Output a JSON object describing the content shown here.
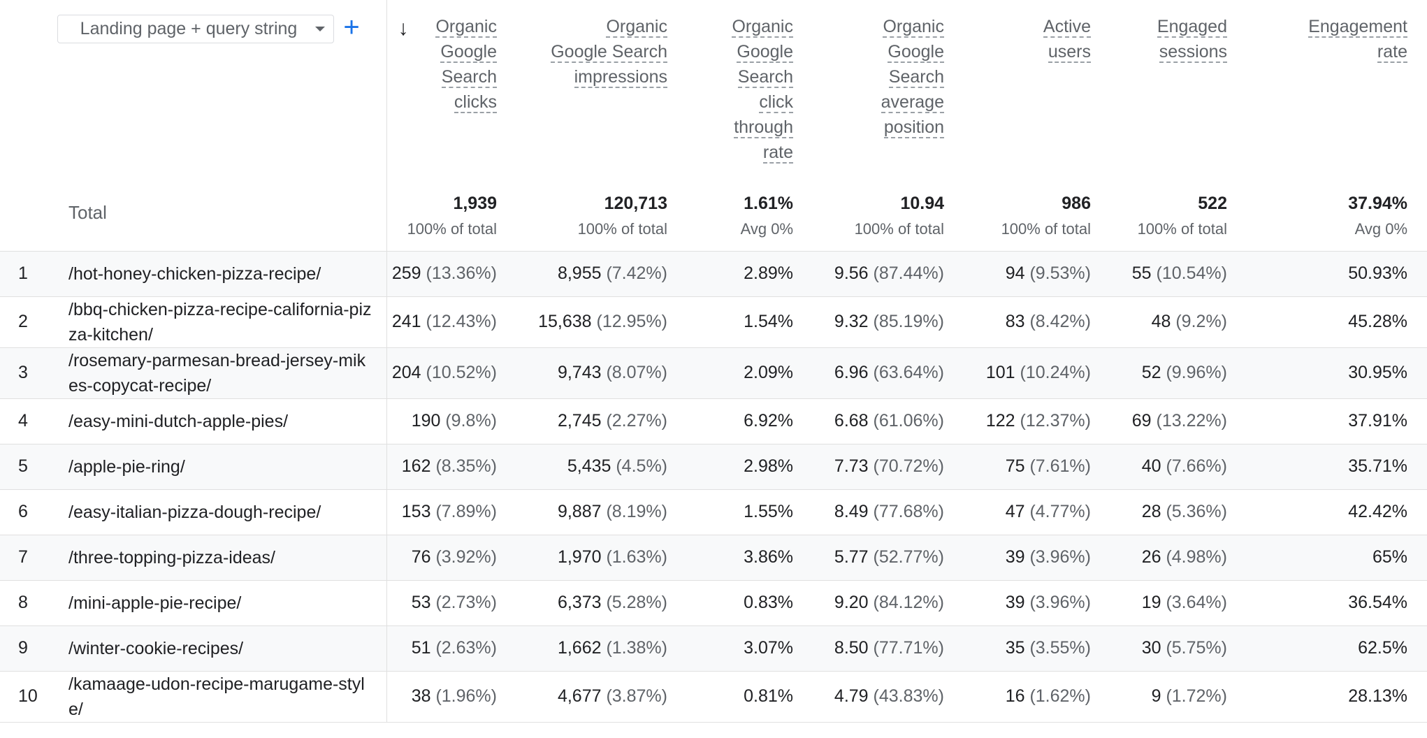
{
  "dimension": {
    "selector_label": "Landing page + query string",
    "add_button": "+"
  },
  "sort_icon": "arrow-down-icon",
  "columns": [
    {
      "lines": [
        "Organic",
        "Google",
        "Search",
        "clicks"
      ]
    },
    {
      "lines": [
        "Organic",
        "Google Search",
        "impressions"
      ]
    },
    {
      "lines": [
        "Organic",
        "Google",
        "Search",
        "click",
        "through",
        "rate"
      ]
    },
    {
      "lines": [
        "Organic",
        "Google",
        "Search",
        "average",
        "position"
      ]
    },
    {
      "lines": [
        "Active",
        "users"
      ]
    },
    {
      "lines": [
        "Engaged",
        "sessions"
      ]
    },
    {
      "lines": [
        "Engagement",
        "rate"
      ]
    }
  ],
  "totals": {
    "label": "Total",
    "values": [
      {
        "value": "1,939",
        "sub": "100% of total"
      },
      {
        "value": "120,713",
        "sub": "100% of total"
      },
      {
        "value": "1.61%",
        "sub": "Avg 0%"
      },
      {
        "value": "10.94",
        "sub": "100% of total"
      },
      {
        "value": "986",
        "sub": "100% of total"
      },
      {
        "value": "522",
        "sub": "100% of total"
      },
      {
        "value": "37.94%",
        "sub": "Avg 0%"
      }
    ]
  },
  "rows": [
    {
      "index": "1",
      "page": "/hot-honey-chicken-pizza-recipe/",
      "cells": [
        {
          "v": "259",
          "p": "(13.36%)"
        },
        {
          "v": "8,955",
          "p": "(7.42%)"
        },
        {
          "v": "2.89%",
          "p": ""
        },
        {
          "v": "9.56",
          "p": "(87.44%)"
        },
        {
          "v": "94",
          "p": "(9.53%)"
        },
        {
          "v": "55",
          "p": "(10.54%)"
        },
        {
          "v": "50.93%",
          "p": ""
        }
      ]
    },
    {
      "index": "2",
      "page": "/bbq-chicken-pizza-recipe-california-pizza-kitchen/",
      "cells": [
        {
          "v": "241",
          "p": "(12.43%)"
        },
        {
          "v": "15,638",
          "p": "(12.95%)"
        },
        {
          "v": "1.54%",
          "p": ""
        },
        {
          "v": "9.32",
          "p": "(85.19%)"
        },
        {
          "v": "83",
          "p": "(8.42%)"
        },
        {
          "v": "48",
          "p": "(9.2%)"
        },
        {
          "v": "45.28%",
          "p": ""
        }
      ]
    },
    {
      "index": "3",
      "page": "/rosemary-parmesan-bread-jersey-mikes-copycat-recipe/",
      "cells": [
        {
          "v": "204",
          "p": "(10.52%)"
        },
        {
          "v": "9,743",
          "p": "(8.07%)"
        },
        {
          "v": "2.09%",
          "p": ""
        },
        {
          "v": "6.96",
          "p": "(63.64%)"
        },
        {
          "v": "101",
          "p": "(10.24%)"
        },
        {
          "v": "52",
          "p": "(9.96%)"
        },
        {
          "v": "30.95%",
          "p": ""
        }
      ]
    },
    {
      "index": "4",
      "page": "/easy-mini-dutch-apple-pies/",
      "cells": [
        {
          "v": "190",
          "p": "(9.8%)"
        },
        {
          "v": "2,745",
          "p": "(2.27%)"
        },
        {
          "v": "6.92%",
          "p": ""
        },
        {
          "v": "6.68",
          "p": "(61.06%)"
        },
        {
          "v": "122",
          "p": "(12.37%)"
        },
        {
          "v": "69",
          "p": "(13.22%)"
        },
        {
          "v": "37.91%",
          "p": ""
        }
      ]
    },
    {
      "index": "5",
      "page": "/apple-pie-ring/",
      "cells": [
        {
          "v": "162",
          "p": "(8.35%)"
        },
        {
          "v": "5,435",
          "p": "(4.5%)"
        },
        {
          "v": "2.98%",
          "p": ""
        },
        {
          "v": "7.73",
          "p": "(70.72%)"
        },
        {
          "v": "75",
          "p": "(7.61%)"
        },
        {
          "v": "40",
          "p": "(7.66%)"
        },
        {
          "v": "35.71%",
          "p": ""
        }
      ]
    },
    {
      "index": "6",
      "page": "/easy-italian-pizza-dough-recipe/",
      "cells": [
        {
          "v": "153",
          "p": "(7.89%)"
        },
        {
          "v": "9,887",
          "p": "(8.19%)"
        },
        {
          "v": "1.55%",
          "p": ""
        },
        {
          "v": "8.49",
          "p": "(77.68%)"
        },
        {
          "v": "47",
          "p": "(4.77%)"
        },
        {
          "v": "28",
          "p": "(5.36%)"
        },
        {
          "v": "42.42%",
          "p": ""
        }
      ]
    },
    {
      "index": "7",
      "page": "/three-topping-pizza-ideas/",
      "cells": [
        {
          "v": "76",
          "p": "(3.92%)"
        },
        {
          "v": "1,970",
          "p": "(1.63%)"
        },
        {
          "v": "3.86%",
          "p": ""
        },
        {
          "v": "5.77",
          "p": "(52.77%)"
        },
        {
          "v": "39",
          "p": "(3.96%)"
        },
        {
          "v": "26",
          "p": "(4.98%)"
        },
        {
          "v": "65%",
          "p": ""
        }
      ]
    },
    {
      "index": "8",
      "page": "/mini-apple-pie-recipe/",
      "cells": [
        {
          "v": "53",
          "p": "(2.73%)"
        },
        {
          "v": "6,373",
          "p": "(5.28%)"
        },
        {
          "v": "0.83%",
          "p": ""
        },
        {
          "v": "9.20",
          "p": "(84.12%)"
        },
        {
          "v": "39",
          "p": "(3.96%)"
        },
        {
          "v": "19",
          "p": "(3.64%)"
        },
        {
          "v": "36.54%",
          "p": ""
        }
      ]
    },
    {
      "index": "9",
      "page": "/winter-cookie-recipes/",
      "cells": [
        {
          "v": "51",
          "p": "(2.63%)"
        },
        {
          "v": "1,662",
          "p": "(1.38%)"
        },
        {
          "v": "3.07%",
          "p": ""
        },
        {
          "v": "8.50",
          "p": "(77.71%)"
        },
        {
          "v": "35",
          "p": "(3.55%)"
        },
        {
          "v": "30",
          "p": "(5.75%)"
        },
        {
          "v": "62.5%",
          "p": ""
        }
      ]
    },
    {
      "index": "10",
      "page": "/kamaage-udon-recipe-marugame-style/",
      "cells": [
        {
          "v": "38",
          "p": "(1.96%)"
        },
        {
          "v": "4,677",
          "p": "(3.87%)"
        },
        {
          "v": "0.81%",
          "p": ""
        },
        {
          "v": "4.79",
          "p": "(43.83%)"
        },
        {
          "v": "16",
          "p": "(1.62%)"
        },
        {
          "v": "9",
          "p": "(1.72%)"
        },
        {
          "v": "28.13%",
          "p": ""
        }
      ]
    }
  ]
}
